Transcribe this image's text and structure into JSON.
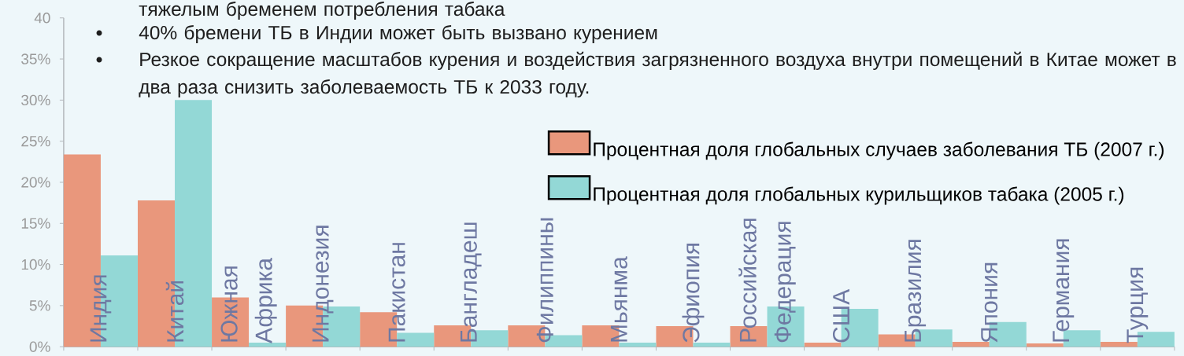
{
  "chart_data": {
    "type": "bar",
    "annotations": [
      "тяжелым бременем потребления табака",
      "40% бремени ТБ в Индии может быть вызвано курением",
      "Резкое сокращение масштабов курения и воздействия загрязненного воздуха внутри помещений в Китае может в два раза снизить заболеваемость ТБ к 2033 году."
    ],
    "categories": [
      "Индия",
      "Китай",
      "Южная Африка",
      "Индонезия",
      "Пакистан",
      "Бангладеш",
      "Филиппины",
      "Мьянма",
      "Эфиопия",
      "Российская Федерация",
      "США",
      "Бразилия",
      "Япония",
      "Германия",
      "Турция"
    ],
    "series": [
      {
        "name": "Процентная доля глобальных случаев заболевания ТБ (2007 г.)",
        "color": "#e9977c",
        "values": [
          23.4,
          17.8,
          6.0,
          5.0,
          4.2,
          2.6,
          2.6,
          2.6,
          2.5,
          2.5,
          0.5,
          1.5,
          0.6,
          0.4,
          0.6
        ]
      },
      {
        "name": "Процентная доля глобальных курильщиков табака (2005 г.)",
        "color": "#93d8d6",
        "values": [
          11.1,
          30.0,
          0.5,
          4.9,
          1.7,
          2.0,
          1.4,
          0.5,
          0.5,
          4.9,
          4.6,
          2.1,
          3.0,
          2.0,
          1.8
        ]
      }
    ],
    "ylim": [
      0,
      40
    ],
    "yticks": [
      {
        "value": 0,
        "label": "0%"
      },
      {
        "value": 5,
        "label": "5%"
      },
      {
        "value": 10,
        "label": "10%"
      },
      {
        "value": 15,
        "label": "15%"
      },
      {
        "value": 20,
        "label": "20%"
      },
      {
        "value": 25,
        "label": "25%"
      },
      {
        "value": 30,
        "label": "30%"
      },
      {
        "value": 35,
        "label": "35%"
      },
      40
    ],
    "legend": "right"
  }
}
